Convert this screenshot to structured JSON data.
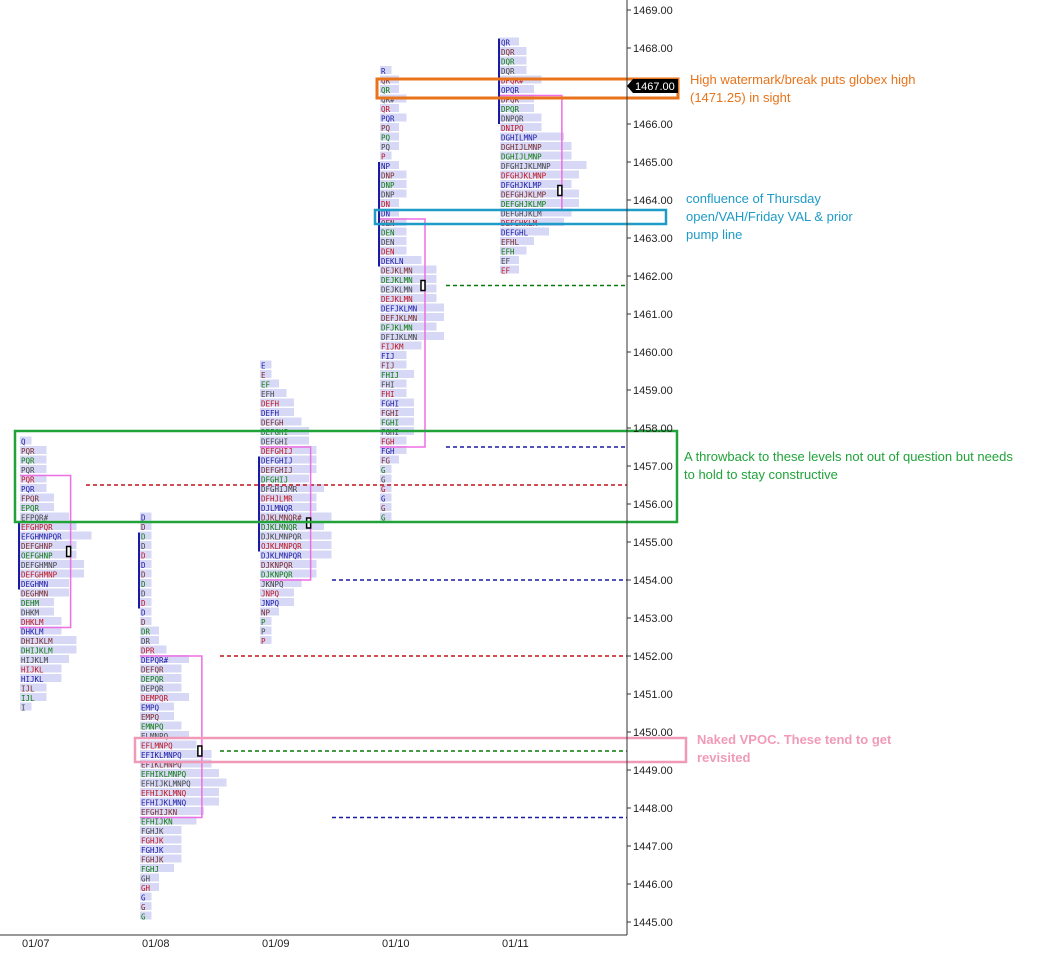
{
  "chart_data": {
    "type": "market-profile",
    "title": "",
    "y_axis": {
      "ticks": [
        "1469.00",
        "1468.00",
        "1467.00",
        "1466.00",
        "1465.00",
        "1464.00",
        "1463.00",
        "1462.00",
        "1461.00",
        "1460.00",
        "1459.00",
        "1458.00",
        "1457.00",
        "1456.00",
        "1455.00",
        "1454.00",
        "1453.00",
        "1452.00",
        "1451.00",
        "1450.00",
        "1449.00",
        "1448.00",
        "1447.00",
        "1446.00",
        "1445.00"
      ],
      "range": [
        1444.6,
        1469.3
      ],
      "tick_size": 0.25,
      "current_price_label": "1467.00"
    },
    "sessions": [
      {
        "date": "01/07",
        "high": 1457.75,
        "rows": [
          "Q",
          "PQR",
          "PQR",
          "PQR",
          "PQR",
          "PQR",
          "FPQR",
          "EPQR",
          "EFPQR#",
          "EFGHPQR",
          "EFGHMNPQR",
          "DEFGHNP",
          "OEFGHNP",
          "DEFGHMNP",
          "DEFGHMNP",
          "DEGHMN",
          "DEGHMN",
          "DEHM",
          "DHKM",
          "DHKLM",
          "DHKLM",
          "DHIJKLM",
          "DHIJKLM",
          "HIJKLM",
          "HIJKL",
          "HIJKL",
          "IJL",
          "IJL",
          "I"
        ],
        "poc": 1454.75,
        "value_area": [
          1452.75,
          1456.75
        ],
        "initial_balance": [
          1453.75,
          1455.5
        ]
      },
      {
        "date": "01/08",
        "high": 1455.75,
        "rows": [
          "D",
          "D",
          "D",
          "D",
          "D",
          "D",
          "D",
          "D",
          "D",
          "D",
          "D",
          "D",
          "DR",
          "DR",
          "DPR",
          "DEPQR#",
          "DEFQR",
          "DEPQR",
          "DEPQR",
          "DEMPQR",
          "EMPQ",
          "EMPQ",
          "EMNPQ",
          "ELMNPQ",
          "EFLMNPQ",
          "EFIKLMNPQ",
          "EFIKLMNPQ",
          "EFHIKLMNPQ",
          "EFHIJKLMNPQ",
          "EFHIJKLMNQ",
          "EFHIJKLMNQ",
          "EFGHIJKN",
          "EFHIJKN",
          "FGHJK",
          "FGHJK",
          "FGHJK",
          "FGHJK",
          "FGHJ",
          "GH",
          "GH",
          "G",
          "G",
          "G"
        ],
        "poc": 1449.5,
        "value_area": [
          1447.75,
          1452.0
        ],
        "initial_balance": [
          1453.25,
          1455.25
        ]
      },
      {
        "date": "01/09",
        "high": 1459.75,
        "rows": [
          "E",
          "E",
          "EF",
          "EFH",
          "DEFH",
          "DEFH",
          "DEFGH",
          "DEFGHI",
          "DEFGHI",
          "DEFGHIJ",
          "DEFGHIJ",
          "DEFGHIJ",
          "DFGHIJ",
          "DFGHIJMR",
          "DFHJLMR",
          "DJLMNQR",
          "DJKLMNQR#",
          "DJKLMNQR",
          "DJKLMNPQR",
          "OJKLMNPQR",
          "DJKLMNPQR",
          "DJKNPQR",
          "DJKNPQR",
          "JKNPQ",
          "JNPQ",
          "JNPQ",
          "NP",
          "P",
          "P",
          "P"
        ],
        "poc": 1455.5,
        "value_area": [
          1454.0,
          1457.5
        ],
        "initial_balance": [
          1454.75,
          1457.25
        ]
      },
      {
        "date": "01/10",
        "high": 1467.5,
        "rows": [
          "R",
          "QR",
          "QR",
          "QR#",
          "QR",
          "PQR",
          "PQ",
          "PQ",
          "PQ",
          "P",
          "NP",
          "DNP",
          "DNP",
          "DNP",
          "DN",
          "DN",
          "OEN",
          "DEN",
          "DEN",
          "DEN",
          "DEKLN",
          "DEJKLMN",
          "DEJKLMN",
          "DEJKLMN",
          "DEJKLMN",
          "DEFJKLMN",
          "DEFJKLMN",
          "DFJKLMN",
          "DFIJKLMN",
          "FIJKM",
          "FIJ",
          "FIJ",
          "FHIJ",
          "FHI",
          "FHI",
          "FGHI",
          "FGHI",
          "FGHI",
          "FGHI",
          "FGH",
          "FGH",
          "FG",
          "G",
          "G",
          "G",
          "G",
          "G",
          "G"
        ],
        "poc": 1461.75,
        "value_area": [
          1457.5,
          1463.5
        ],
        "initial_balance": [
          1462.25,
          1465.0
        ]
      },
      {
        "date": "01/11",
        "high": 1468.25,
        "rows": [
          "QR",
          "DQR",
          "DQR",
          "DQR",
          "DPQR#",
          "OPQR",
          "DPQR",
          "DPQR",
          "DNPQR",
          "DNIPQ",
          "DGHILMNP",
          "DGHIJLMNP",
          "DGHIJLMNP",
          "DFGHIJKLMNP",
          "DFGHJKLMNP",
          "DFGHJKLMP",
          "DEFGHJKLMP",
          "DEFGHJKLMP",
          "DEFGHJKLM",
          "DEFGHKLM",
          "DEFGHL",
          "EFHL",
          "EFH",
          "EF",
          "EF"
        ],
        "poc": 1464.25,
        "value_area": [
          1463.75,
          1466.75
        ],
        "initial_balance": [
          1466.0,
          1468.25
        ]
      }
    ],
    "naked_levels": [
      {
        "price": 1456.5,
        "kind": "vah",
        "color": "#c0141c"
      },
      {
        "price": 1452.0,
        "kind": "vah",
        "color": "#c0141c"
      },
      {
        "price": 1449.5,
        "kind": "vpoc",
        "color": "#0a7a0a"
      },
      {
        "price": 1447.75,
        "kind": "val",
        "color": "#1a1aa6"
      },
      {
        "price": 1454.0,
        "kind": "val",
        "color": "#1a1aa6"
      },
      {
        "price": 1461.75,
        "kind": "vpoc",
        "color": "#0a7a0a"
      },
      {
        "price": 1457.5,
        "kind": "val",
        "color": "#1a1aa6"
      }
    ]
  },
  "annotations": [
    {
      "id": "watermark",
      "text": "High watermark/break puts globex high (1471.25) in sight",
      "color": "#e8731a"
    },
    {
      "id": "confluence",
      "text": "confluence of Thursday open/VAH/Friday VAL & prior pump line",
      "color": "#1e9bc7"
    },
    {
      "id": "throwback",
      "text": "A throwback to these levels not out of question but needs to hold to stay constructive",
      "color": "#21a33a"
    },
    {
      "id": "vpoc",
      "text": "Naked VPOC.  These tend to get revisited",
      "color": "#f19ab8"
    }
  ],
  "colors": {
    "profile_bar": "#d6d8f6",
    "value_area_box": "#ee6fe3",
    "ib_line": "#1a1aa6",
    "tpo_palette": [
      "#1a1aa6",
      "#7a2a2a",
      "#0a7a0a",
      "#444444",
      "#c0141c"
    ]
  }
}
